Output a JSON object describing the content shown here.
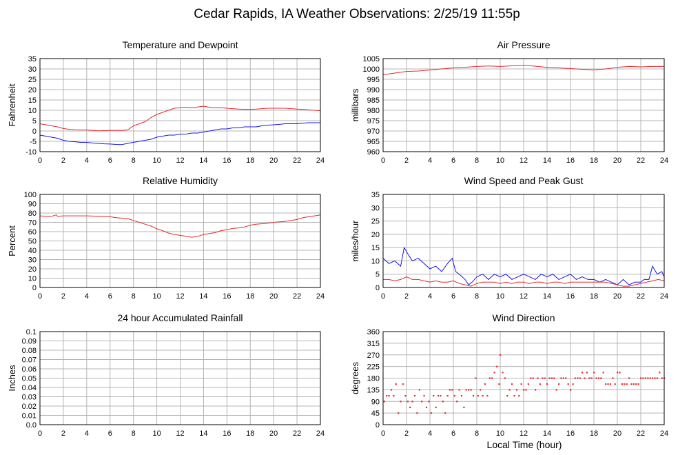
{
  "page": {
    "title": "Cedar Rapids, IA Weather Observations: 2/25/19 11:55p",
    "x_axis_label": "Local Time (hour)"
  },
  "colors": {
    "red": "#e8262b",
    "blue": "#1414e6",
    "grid": "#b4b4b4"
  },
  "chart_data": [
    {
      "id": "temp",
      "type": "line",
      "title": "Temperature and Dewpoint",
      "ylabel": "Fahrenheit",
      "xlim": [
        0,
        24
      ],
      "ylim": [
        -10,
        35
      ],
      "xticks": [
        0,
        2,
        4,
        6,
        8,
        10,
        12,
        14,
        16,
        18,
        20,
        22,
        24
      ],
      "yticks": [
        -10,
        -5,
        0,
        5,
        10,
        15,
        20,
        25,
        30,
        35
      ],
      "grid": true,
      "series": [
        {
          "color": "#e8262b",
          "x": [
            0,
            0.5,
            1,
            1.5,
            2,
            2.5,
            3,
            3.5,
            4,
            4.5,
            5,
            5.5,
            6,
            6.5,
            7,
            7.5,
            8,
            8.5,
            9,
            9.5,
            10,
            10.5,
            11,
            11.5,
            12,
            12.5,
            13,
            13.5,
            14,
            14.5,
            15,
            15.5,
            16,
            16.5,
            17,
            17.5,
            18,
            18.5,
            19,
            19.5,
            20,
            20.5,
            21,
            21.5,
            22,
            22.5,
            23,
            23.5,
            24
          ],
          "values": [
            3.5,
            3,
            2.5,
            2,
            1.2,
            0.8,
            0.6,
            0.5,
            0.5,
            0.3,
            0.1,
            0.2,
            0.3,
            0.3,
            0.3,
            0.5,
            2.5,
            3.5,
            4.5,
            6.5,
            8,
            9,
            10,
            11,
            11.2,
            11.5,
            11.2,
            11.6,
            12,
            11.5,
            11.2,
            11.2,
            11,
            10.8,
            10.6,
            10.5,
            10.5,
            10.6,
            10.8,
            11,
            11,
            11,
            11,
            10.8,
            10.6,
            10.4,
            10.2,
            10,
            9.8
          ]
        },
        {
          "color": "#1414e6",
          "x": [
            0,
            0.5,
            1,
            1.5,
            2,
            2.5,
            3,
            3.5,
            4,
            4.5,
            5,
            5.5,
            6,
            6.5,
            7,
            7.5,
            8,
            8.5,
            9,
            9.5,
            10,
            10.5,
            11,
            11.5,
            12,
            12.5,
            13,
            13.5,
            14,
            14.5,
            15,
            15.5,
            16,
            16.5,
            17,
            17.5,
            18,
            18.5,
            19,
            19.5,
            20,
            20.5,
            21,
            21.5,
            22,
            22.5,
            23,
            23.5,
            24
          ],
          "values": [
            -2,
            -2.5,
            -3,
            -3.5,
            -4.5,
            -5,
            -5.2,
            -5.5,
            -5.5,
            -5.8,
            -6,
            -6.2,
            -6.3,
            -6.5,
            -6.6,
            -6,
            -5.5,
            -5,
            -4.5,
            -4,
            -3,
            -2.5,
            -2,
            -2,
            -1.5,
            -1.5,
            -1,
            -1,
            -0.5,
            0,
            0.5,
            1,
            1,
            1.5,
            1.5,
            2,
            2,
            2,
            2.5,
            2.8,
            3,
            3.2,
            3.5,
            3.5,
            3.5,
            3.8,
            4,
            4,
            4
          ]
        }
      ]
    },
    {
      "id": "pressure",
      "type": "line",
      "title": "Air Pressure",
      "ylabel": "millibars",
      "xlim": [
        0,
        24
      ],
      "ylim": [
        960,
        1005
      ],
      "xticks": [
        0,
        2,
        4,
        6,
        8,
        10,
        12,
        14,
        16,
        18,
        20,
        22,
        24
      ],
      "yticks": [
        960,
        965,
        970,
        975,
        980,
        985,
        990,
        995,
        1000,
        1005
      ],
      "grid": true,
      "series": [
        {
          "color": "#e8262b",
          "x": [
            0,
            1,
            2,
            3,
            4,
            5,
            6,
            7,
            8,
            9,
            10,
            11,
            12,
            13,
            14,
            15,
            16,
            17,
            18,
            19,
            20,
            21,
            22,
            23,
            24
          ],
          "values": [
            997.2,
            998,
            998.8,
            999,
            999.5,
            1000,
            1000.5,
            1000.8,
            1001.2,
            1001.4,
            1001.2,
            1001.5,
            1001.8,
            1001.3,
            1000.8,
            1000.5,
            1000.2,
            999.8,
            999.5,
            1000,
            1000.8,
            1001.2,
            1001,
            1001.2,
            1001.2
          ]
        }
      ]
    },
    {
      "id": "humidity",
      "type": "line",
      "title": "Relative Humidity",
      "ylabel": "Percent",
      "xlim": [
        0,
        24
      ],
      "ylim": [
        0,
        100
      ],
      "xticks": [
        0,
        2,
        4,
        6,
        8,
        10,
        12,
        14,
        16,
        18,
        20,
        22,
        24
      ],
      "yticks": [
        0,
        10,
        20,
        30,
        40,
        50,
        60,
        70,
        80,
        90,
        100
      ],
      "grid": true,
      "series": [
        {
          "color": "#e8262b",
          "x": [
            0,
            0.5,
            1,
            1.4,
            1.5,
            2,
            3,
            4,
            5,
            6,
            6.5,
            7,
            7.5,
            8,
            8.5,
            9,
            9.5,
            10,
            10.5,
            11,
            11.5,
            12,
            12.5,
            13,
            13.5,
            14,
            14.5,
            15,
            15.5,
            16,
            16.5,
            17,
            17.5,
            18,
            18.5,
            19,
            19.5,
            20,
            20.5,
            21,
            21.5,
            22,
            22.5,
            23,
            23.5,
            24
          ],
          "values": [
            77,
            76.5,
            76.5,
            78,
            76.5,
            77,
            77,
            77,
            76.5,
            76,
            75,
            74.5,
            74,
            72,
            70,
            68,
            66,
            63,
            61,
            58.5,
            57,
            56,
            55,
            54,
            55,
            57,
            58,
            59,
            61,
            62,
            63.5,
            64,
            65,
            67,
            68,
            68.5,
            69,
            70,
            70.5,
            71,
            72,
            73,
            75,
            76,
            77,
            78
          ]
        }
      ]
    },
    {
      "id": "wind",
      "type": "line",
      "title": "Wind Speed and Peak Gust",
      "ylabel": "miles/hour",
      "xlim": [
        0,
        24
      ],
      "ylim": [
        0,
        35
      ],
      "xticks": [
        0,
        2,
        4,
        6,
        8,
        10,
        12,
        14,
        16,
        18,
        20,
        22,
        24
      ],
      "yticks": [
        0,
        5,
        10,
        15,
        20,
        25,
        30,
        35
      ],
      "grid": true,
      "series": [
        {
          "color": "#1414e6",
          "x": [
            0,
            0.5,
            1,
            1.5,
            1.8,
            2.2,
            2.5,
            3,
            3.5,
            4,
            4.5,
            5,
            5.5,
            5.9,
            6.2,
            6.5,
            7,
            7.3,
            7.6,
            8,
            8.5,
            9,
            9.5,
            10,
            10.5,
            11,
            11.5,
            12,
            12.5,
            13,
            13.5,
            14,
            14.5,
            15,
            15.5,
            16,
            16.5,
            17,
            17.5,
            18,
            18.5,
            19,
            19.5,
            20,
            20.5,
            21,
            21.5,
            22,
            22.3,
            22.7,
            23,
            23.4,
            23.8,
            24
          ],
          "values": [
            11,
            9,
            10,
            8,
            15,
            12,
            10,
            11,
            9,
            7,
            8,
            6,
            9,
            11,
            6,
            5,
            3,
            1,
            2,
            4,
            5,
            3,
            5,
            4,
            5,
            3,
            4,
            5,
            4,
            3,
            5,
            4,
            5,
            3,
            4,
            5,
            3,
            4,
            3,
            3,
            2,
            3,
            2,
            1,
            3,
            1,
            2,
            2,
            3,
            3,
            8,
            5,
            6,
            4
          ]
        },
        {
          "color": "#e8262b",
          "x": [
            0,
            0.5,
            1,
            1.5,
            2,
            2.5,
            3,
            3.5,
            4,
            4.5,
            5,
            5.5,
            6,
            6.5,
            7,
            7.5,
            8,
            8.5,
            9,
            9.5,
            10,
            10.5,
            11,
            11.5,
            12,
            12.5,
            13,
            13.5,
            14,
            14.5,
            15,
            15.5,
            16,
            16.5,
            17,
            17.5,
            18,
            18.5,
            19,
            19.5,
            20,
            20.5,
            21,
            21.5,
            22,
            22.5,
            23,
            23.5,
            24
          ],
          "values": [
            3,
            3,
            2.5,
            3,
            4,
            3,
            3,
            2.5,
            2,
            2.5,
            2,
            2,
            2.5,
            1.5,
            1,
            0.5,
            1.5,
            2,
            2,
            2,
            1.5,
            2,
            1.5,
            2,
            2,
            1.5,
            2,
            2,
            1.5,
            2,
            2,
            1.5,
            2,
            2,
            2,
            2,
            2,
            2,
            2,
            1.5,
            1,
            0.5,
            0.5,
            1,
            1.5,
            2,
            2.5,
            3,
            2.5
          ]
        }
      ]
    },
    {
      "id": "rain",
      "type": "line",
      "title": "24 hour Accumulated Rainfall",
      "ylabel": "Inches",
      "xlim": [
        0,
        24
      ],
      "ylim": [
        0,
        0.1
      ],
      "xticks": [
        0,
        2,
        4,
        6,
        8,
        10,
        12,
        14,
        16,
        18,
        20,
        22,
        24
      ],
      "yticks": [
        0,
        0.01,
        0.02,
        0.03,
        0.04,
        0.05,
        0.06,
        0.07,
        0.08,
        0.09,
        0.1
      ],
      "ytick_labels": [
        "0.0",
        "0.01",
        "0.02",
        "0.03",
        "0.04",
        "0.05",
        "0.06",
        "0.07",
        "0.08",
        "0.09",
        "0.1"
      ],
      "grid": true,
      "series": [
        {
          "color": "#e8262b",
          "x": [
            0,
            24
          ],
          "values": [
            0,
            0
          ]
        }
      ]
    },
    {
      "id": "direction",
      "type": "scatter",
      "title": "Wind Direction",
      "ylabel": "degrees",
      "xlabel": "Local Time (hour)",
      "xlim": [
        0,
        24
      ],
      "ylim": [
        0,
        360
      ],
      "xticks": [
        0,
        2,
        4,
        6,
        8,
        10,
        12,
        14,
        16,
        18,
        20,
        22,
        24
      ],
      "yticks": [
        0,
        45,
        90,
        135,
        180,
        225,
        270,
        315,
        360
      ],
      "grid": true,
      "series": [
        {
          "color": "#e8262b",
          "x": [
            0.1,
            0.3,
            0.5,
            0.7,
            0.9,
            1.1,
            1.3,
            1.5,
            1.7,
            1.9,
            2.1,
            2.3,
            2.5,
            2.7,
            2.9,
            3.1,
            3.3,
            3.5,
            3.7,
            3.9,
            4.1,
            4.3,
            4.5,
            4.7,
            4.9,
            5.1,
            5.3,
            5.5,
            5.7,
            5.9,
            6.1,
            6.3,
            6.5,
            6.7,
            6.9,
            7.1,
            7.3,
            7.5,
            7.7,
            7.9,
            8.1,
            8.3,
            8.5,
            8.7,
            8.9,
            9.1,
            9.3,
            9.5,
            9.7,
            9.9,
            10.0,
            10.2,
            10.4,
            10.6,
            10.8,
            11.0,
            11.2,
            11.4,
            11.6,
            11.8,
            12.0,
            12.2,
            12.4,
            12.6,
            12.8,
            13.0,
            13.2,
            13.4,
            13.6,
            13.8,
            14.0,
            14.2,
            14.4,
            14.6,
            14.8,
            15.0,
            15.2,
            15.4,
            15.6,
            15.8,
            16.0,
            16.2,
            16.4,
            16.6,
            16.8,
            17.0,
            17.2,
            17.4,
            17.6,
            17.8,
            18.0,
            18.2,
            18.4,
            18.6,
            18.8,
            19.0,
            19.2,
            19.4,
            19.6,
            19.8,
            20.0,
            20.2,
            20.4,
            20.6,
            20.8,
            21.0,
            21.2,
            21.4,
            21.6,
            21.8,
            22.0,
            22.2,
            22.4,
            22.6,
            22.8,
            23.0,
            23.2,
            23.4,
            23.6,
            23.8,
            24.0
          ],
          "values": [
            90,
            112,
            112,
            135,
            112,
            157,
            45,
            90,
            157,
            112,
            90,
            67,
            90,
            112,
            45,
            135,
            90,
            112,
            67,
            90,
            45,
            112,
            67,
            112,
            112,
            90,
            45,
            112,
            135,
            135,
            112,
            90,
            135,
            112,
            67,
            135,
            135,
            135,
            112,
            180,
            112,
            135,
            112,
            157,
            112,
            180,
            180,
            202,
            225,
            157,
            270,
            202,
            180,
            112,
            135,
            157,
            112,
            135,
            112,
            157,
            135,
            135,
            157,
            180,
            180,
            135,
            180,
            157,
            180,
            180,
            157,
            180,
            180,
            180,
            135,
            157,
            180,
            180,
            180,
            157,
            135,
            157,
            180,
            180,
            180,
            202,
            180,
            202,
            180,
            180,
            202,
            180,
            180,
            180,
            202,
            157,
            157,
            157,
            180,
            157,
            202,
            202,
            157,
            157,
            157,
            180,
            157,
            157,
            157,
            157,
            180,
            180,
            180,
            180,
            180,
            180,
            180,
            180,
            202,
            180,
            180
          ]
        }
      ]
    }
  ]
}
